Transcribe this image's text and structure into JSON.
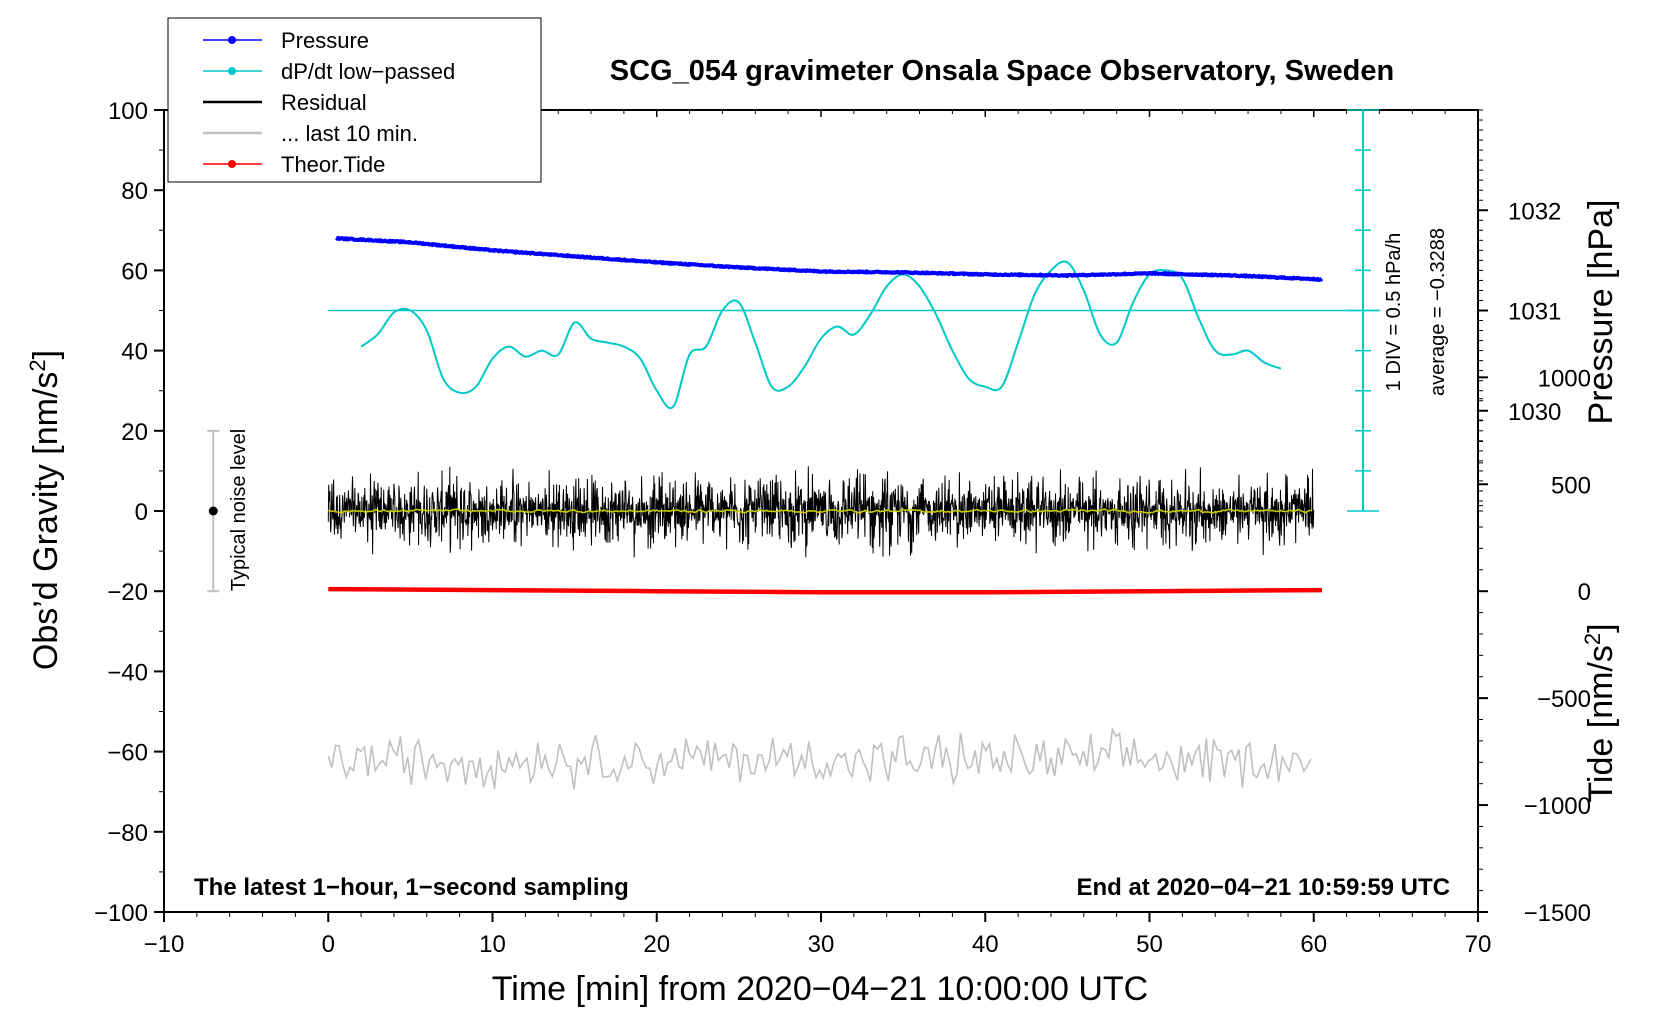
{
  "chart_data": {
    "type": "line",
    "title": "SCG_054 gravimeter Onsala Space Observatory, Sweden",
    "xlabel": "Time [min] from 2020−04−21 10:00:00 UTC",
    "ylabel_main": "Obs’d Gravity [nm/s",
    "ylabel_main_sup": "2",
    "ylabel_main_end": "]",
    "ylabel_pressure": "Pressure [hPa]",
    "ylabel_tide": "Tide [nm/s",
    "ylabel_tide_sup": "2",
    "ylabel_tide_end": "]",
    "xlim": [
      -10,
      70
    ],
    "ylim": [
      -100,
      100
    ],
    "x_ticks": [
      -10,
      0,
      10,
      20,
      30,
      40,
      50,
      60,
      70
    ],
    "x_tick_labels": [
      "−10",
      "0",
      "10",
      "20",
      "30",
      "40",
      "50",
      "60",
      "70"
    ],
    "y_ticks": [
      -100,
      -80,
      -60,
      -40,
      -20,
      0,
      20,
      40,
      60,
      80,
      100
    ],
    "y_tick_labels": [
      "−100",
      "−80",
      "−60",
      "−40",
      "−20",
      "0",
      "20",
      "40",
      "60",
      "80",
      "100"
    ],
    "pressure_axis": {
      "ticks": [
        1030,
        1031,
        1032
      ],
      "tick_labels": [
        "1030",
        "1031",
        "1032"
      ],
      "range": [
        1029,
        1033
      ],
      "maps_to_gravity_range": [
        0,
        100
      ]
    },
    "tide_axis": {
      "ticks": [
        -1500,
        -1000,
        -500,
        0,
        500,
        1000
      ],
      "tick_labels": [
        "−1500",
        "−1000",
        "−500",
        "0",
        "500",
        "1000"
      ],
      "range": [
        -1500,
        1500
      ],
      "maps_to_gravity_range": [
        -100,
        60
      ]
    },
    "legend": {
      "position": "top-left",
      "entries": [
        {
          "label": "Pressure",
          "color": "#0000ff",
          "marker": "dot"
        },
        {
          "label": "dP/dt low−passed",
          "color": "#00c8c8",
          "marker": "dot"
        },
        {
          "label": "Residual",
          "color": "#000000",
          "marker": "none"
        },
        {
          "label": "... last 10 min.",
          "color": "#c0c0c0",
          "marker": "none"
        },
        {
          "label": "Theor.Tide",
          "color": "#ff0000",
          "marker": "dot"
        }
      ]
    },
    "series": [
      {
        "name": "Pressure",
        "unit": "hPa",
        "x": [
          0.5,
          5,
          10,
          15,
          20,
          25,
          30,
          35,
          40,
          45,
          50,
          55,
          60.5
        ],
        "values": [
          1031.72,
          1031.68,
          1031.6,
          1031.54,
          1031.48,
          1031.43,
          1031.39,
          1031.38,
          1031.36,
          1031.35,
          1031.37,
          1031.35,
          1031.31
        ]
      },
      {
        "name": "dP/dt low-passed",
        "unit": "gravity-axis scale (1 DIV = 0.5 hPa/h)",
        "x": [
          2,
          3,
          4,
          5,
          6,
          7,
          8,
          9,
          10,
          11,
          12,
          13,
          14,
          15,
          16,
          17,
          18,
          19,
          20,
          21,
          22,
          23,
          24,
          25,
          26,
          27,
          28,
          29,
          30,
          31,
          32,
          33,
          34,
          35,
          36,
          37,
          38,
          39,
          40,
          41,
          42,
          43,
          44,
          45,
          46,
          47,
          48,
          49,
          50,
          51,
          52,
          53,
          54,
          55,
          56,
          57,
          58
        ],
        "values": [
          41,
          44,
          49.5,
          50,
          45,
          33,
          29.5,
          31,
          38,
          41,
          38.5,
          40,
          39,
          47,
          43,
          42,
          41,
          38,
          30,
          26,
          39,
          41,
          50,
          52,
          42,
          31,
          31,
          36,
          43,
          46,
          44,
          49,
          56,
          59,
          56,
          49,
          40,
          33,
          31,
          31,
          42,
          54,
          60,
          62,
          55,
          44,
          42,
          52,
          59,
          60,
          58,
          48,
          40,
          39,
          40,
          37,
          35.5
        ]
      },
      {
        "name": "Residual",
        "unit": "nm/s2",
        "x_range": [
          0,
          60
        ],
        "sampling": "1-second",
        "amplitude_range": [
          -13,
          13
        ],
        "center": 0
      },
      {
        "name": "... last 10 min.",
        "unit": "nm/s2 (offset display)",
        "x_range": [
          0,
          60
        ],
        "center": -62,
        "amplitude_range": [
          -71,
          -51
        ]
      },
      {
        "name": "Theor.Tide",
        "unit": "nm/s2",
        "x": [
          0,
          10,
          20,
          30,
          40,
          50,
          60.5
        ],
        "values": [
          10,
          5,
          0,
          -5,
          -5,
          0,
          5
        ]
      }
    ],
    "dpdt_reference_level": 50,
    "dpdt_note": "1 DIV = 0.5 hPa/h",
    "dpdt_average": "average = −0.3288",
    "noise_marker": {
      "x": -7,
      "center": 0,
      "range": [
        -20,
        20
      ],
      "label": "Typical noise level"
    },
    "note_left": "The latest 1−hour, 1−second sampling",
    "note_right": "End at 2020−04−21 10:59:59 UTC"
  }
}
